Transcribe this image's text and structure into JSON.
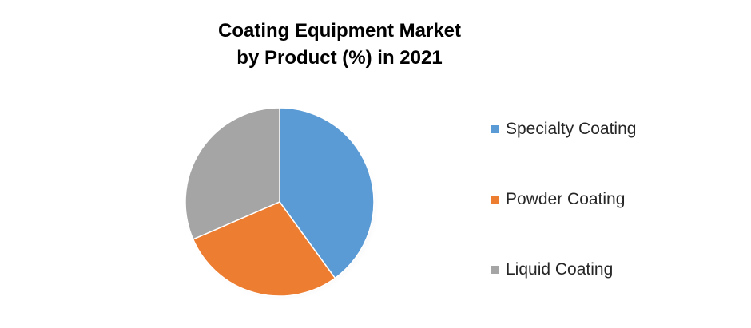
{
  "chart_data": {
    "type": "pie",
    "title_lines": [
      "Coating Equipment Market",
      "by Product (%) in 2021"
    ],
    "legend_position": "right",
    "slices": [
      {
        "name": "Specialty Coating",
        "value": 40,
        "color": "#5b9bd5"
      },
      {
        "name": "Powder Coating",
        "value": 28.5,
        "color": "#ed7d31"
      },
      {
        "name": "Liquid Coating",
        "value": 31.5,
        "color": "#a5a5a5"
      }
    ]
  }
}
